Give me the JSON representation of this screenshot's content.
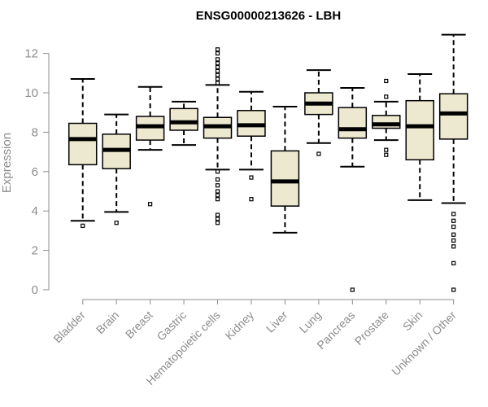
{
  "chart_data": {
    "type": "boxplot",
    "title": "ENSG00000213626 - LBH",
    "xlabel": "",
    "ylabel": "Expression",
    "ylim": [
      0,
      12.5
    ],
    "yticks": [
      0,
      2,
      4,
      6,
      8,
      10,
      12
    ],
    "categories": [
      "Bladder",
      "Brain",
      "Breast",
      "Gastric",
      "Hematopoietic cells",
      "Kidney",
      "Liver",
      "Lung",
      "Pancreas",
      "Prostate",
      "Skin",
      "Unknown / Other"
    ],
    "boxes": [
      {
        "name": "Bladder",
        "whislo": 3.5,
        "q1": 6.35,
        "med": 7.65,
        "q3": 8.45,
        "whishi": 10.7,
        "fliers": [
          3.25
        ]
      },
      {
        "name": "Brain",
        "whislo": 3.95,
        "q1": 6.15,
        "med": 7.1,
        "q3": 7.9,
        "whishi": 8.9,
        "fliers": [
          3.4
        ]
      },
      {
        "name": "Breast",
        "whislo": 7.1,
        "q1": 7.6,
        "med": 8.3,
        "q3": 8.8,
        "whishi": 10.3,
        "fliers": [
          4.35
        ]
      },
      {
        "name": "Gastric",
        "whislo": 7.35,
        "q1": 8.1,
        "med": 8.5,
        "q3": 9.2,
        "whishi": 9.55,
        "fliers": []
      },
      {
        "name": "Hematopoietic cells",
        "whislo": 6.1,
        "q1": 7.7,
        "med": 8.3,
        "q3": 8.75,
        "whishi": 10.4,
        "fliers": [
          12.2,
          12.0,
          11.7,
          11.5,
          11.3,
          11.1,
          10.9,
          10.7,
          10.5,
          6.0,
          5.6,
          5.3,
          5.0,
          4.8,
          4.6,
          3.8,
          3.6,
          3.4
        ]
      },
      {
        "name": "Kidney",
        "whislo": 6.1,
        "q1": 7.8,
        "med": 8.35,
        "q3": 9.1,
        "whishi": 10.05,
        "fliers": [
          5.7,
          4.6
        ]
      },
      {
        "name": "Liver",
        "whislo": 2.9,
        "q1": 4.25,
        "med": 5.5,
        "q3": 7.05,
        "whishi": 9.3,
        "fliers": []
      },
      {
        "name": "Lung",
        "whislo": 7.45,
        "q1": 8.9,
        "med": 9.45,
        "q3": 10.0,
        "whishi": 11.15,
        "fliers": [
          6.9
        ]
      },
      {
        "name": "Pancreas",
        "whislo": 6.25,
        "q1": 7.7,
        "med": 8.15,
        "q3": 9.25,
        "whishi": 10.25,
        "fliers": [
          0.0
        ]
      },
      {
        "name": "Prostate",
        "whislo": 7.6,
        "q1": 8.2,
        "med": 8.4,
        "q3": 8.85,
        "whishi": 9.55,
        "fliers": [
          10.6,
          9.8,
          7.1,
          6.85
        ]
      },
      {
        "name": "Skin",
        "whislo": 4.55,
        "q1": 6.6,
        "med": 8.3,
        "q3": 9.6,
        "whishi": 10.95,
        "fliers": []
      },
      {
        "name": "Unknown / Other",
        "whislo": 4.4,
        "q1": 7.65,
        "med": 8.95,
        "q3": 9.95,
        "whishi": 12.95,
        "fliers": [
          3.85,
          3.5,
          3.2,
          2.8,
          2.5,
          2.2,
          1.35,
          0.0
        ]
      }
    ],
    "colors": {
      "box_fill": "#ede8d0",
      "stroke": "#000000",
      "axis": "#8c8c8c"
    },
    "grid": false
  }
}
